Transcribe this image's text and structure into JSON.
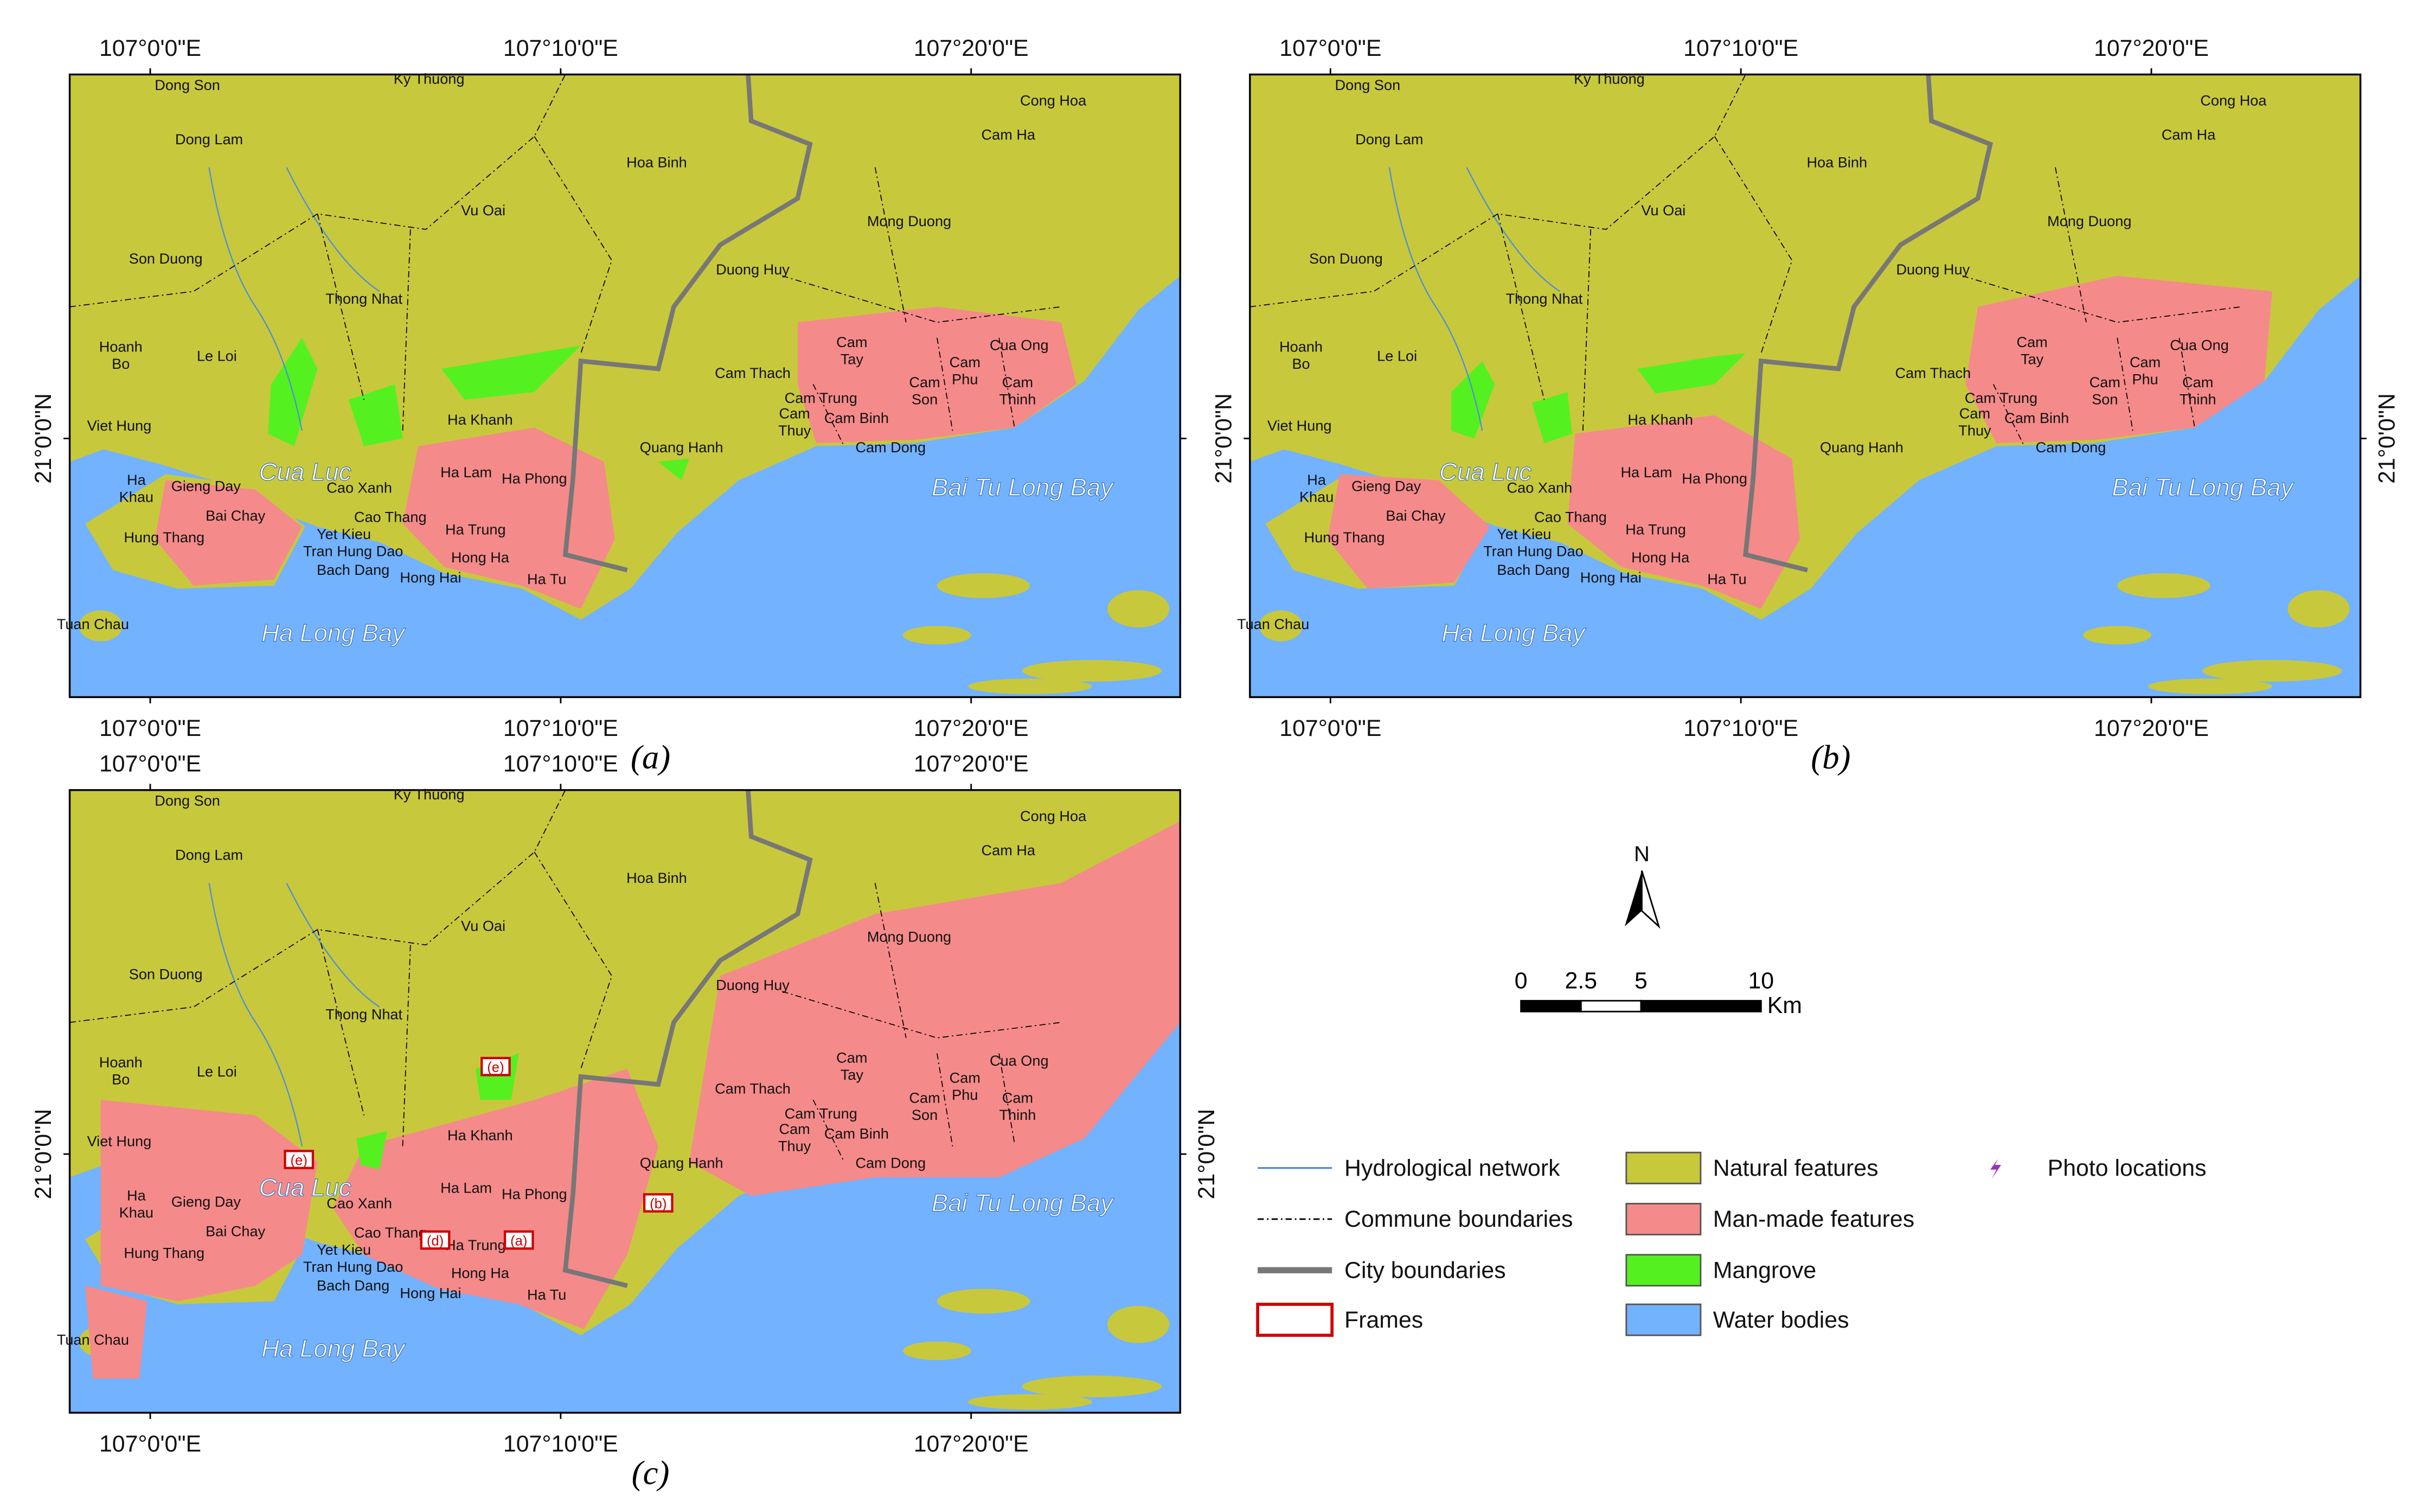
{
  "panels": [
    {
      "caption": "(a)"
    },
    {
      "caption": "(b)"
    },
    {
      "caption": "(c)",
      "frames": [
        "(e)",
        "(e)",
        "(b)",
        "(d)",
        "(a)"
      ]
    }
  ],
  "lon_labels": [
    "107°0'0\"E",
    "107°10'0\"E",
    "107°20'0\"E"
  ],
  "lat_label": "21°0'0\"N",
  "place_labels": [
    [
      "Dong Son"
    ],
    [
      "Ky Thuong"
    ],
    [
      "Cong Hoa"
    ],
    [
      "Dong Lam"
    ],
    [
      "Hoa Binh"
    ],
    [
      "Cam Ha"
    ],
    [
      "Vu Oai"
    ],
    [
      "Mong Duong"
    ],
    [
      "Son Duong"
    ],
    [
      "Duong Huy"
    ],
    [
      "Thong Nhat"
    ],
    [
      "Hoanh",
      "Bo"
    ],
    [
      "Le Loi"
    ],
    [
      "Viet Hung"
    ],
    [
      "Ha",
      "Khau"
    ],
    [
      "Gieng Day"
    ],
    [
      "Cao Xanh"
    ],
    [
      "Ha Khanh"
    ],
    [
      "Ha Lam"
    ],
    [
      "Ha Phong"
    ],
    [
      "Bai Chay"
    ],
    [
      "Cao Thang"
    ],
    [
      "Yet Kieu"
    ],
    [
      "Tran Hung Dao"
    ],
    [
      "Bach Dang"
    ],
    [
      "Ha Trung"
    ],
    [
      "Hong Ha"
    ],
    [
      "Hong Hai"
    ],
    [
      "Ha Tu"
    ],
    [
      "Hung Thang"
    ],
    [
      "Tuan Chau"
    ],
    [
      "Quang Hanh"
    ],
    [
      "Cam Thach"
    ],
    [
      "Cam",
      "Tay"
    ],
    [
      "Cam Trung"
    ],
    [
      "Cam",
      "Thuy"
    ],
    [
      "Cam Binh"
    ],
    [
      "Cam Dong"
    ],
    [
      "Cam",
      "Son"
    ],
    [
      "Cam",
      "Phu"
    ],
    [
      "Cua Ong"
    ],
    [
      "Cam",
      "Thinh"
    ]
  ],
  "bay_labels": [
    "Cua Luc",
    "Ha Long Bay",
    "Bai Tu Long Bay"
  ],
  "north": "N",
  "scale": {
    "ticks": [
      0,
      2.5,
      5,
      10
    ],
    "unit": "Km"
  },
  "legend": [
    {
      "label": "Hydrological network",
      "kind": "line",
      "color": "#4a90d9"
    },
    {
      "label": "Commune boundaries",
      "kind": "dash",
      "color": "#000000"
    },
    {
      "label": "City boundaries",
      "kind": "thick",
      "color": "#777777"
    },
    {
      "label": "Frames",
      "kind": "frame",
      "color": "#d00000"
    },
    {
      "label": "Natural features",
      "kind": "fill",
      "color": "#c8c83c"
    },
    {
      "label": "Man-made features",
      "kind": "fill",
      "color": "#f58a8a"
    },
    {
      "label": "Mangrove",
      "kind": "fill",
      "color": "#55f020"
    },
    {
      "label": "Water bodies",
      "kind": "fill",
      "color": "#73b2ff"
    },
    {
      "label": "Photo locations",
      "kind": "photo",
      "color": "#9b30c0"
    }
  ]
}
